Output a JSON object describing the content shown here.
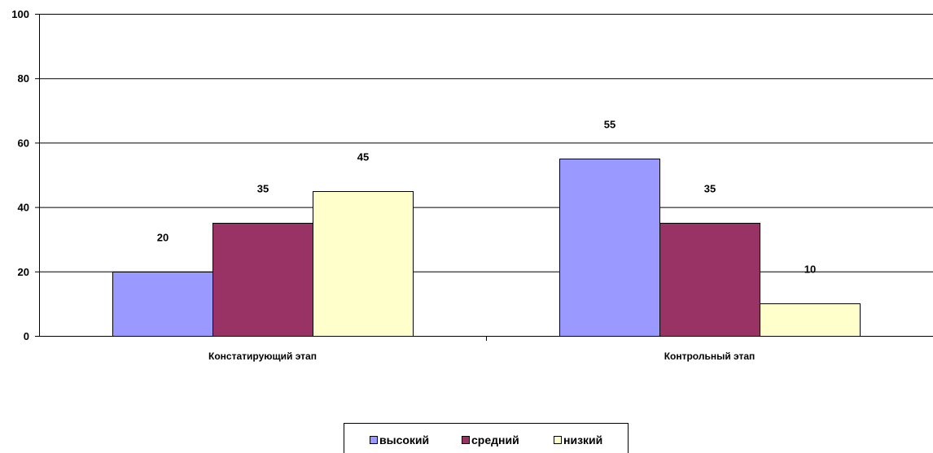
{
  "chart_data": {
    "type": "bar",
    "categories": [
      "Констатирующий этап",
      "Контрольный этап"
    ],
    "series": [
      {
        "name": "высокий",
        "values": [
          20,
          55
        ],
        "color": "#9999FF"
      },
      {
        "name": "средний",
        "values": [
          35,
          35
        ],
        "color": "#993366"
      },
      {
        "name": "низкий",
        "values": [
          45,
          10
        ],
        "color": "#FFFFCC"
      }
    ],
    "title": "",
    "xlabel": "",
    "ylabel": "",
    "ylim": [
      0,
      100
    ],
    "yticks": [
      0,
      20,
      40,
      60,
      80,
      100
    ],
    "grid": true,
    "data_labels": true,
    "legend": "bottom"
  }
}
